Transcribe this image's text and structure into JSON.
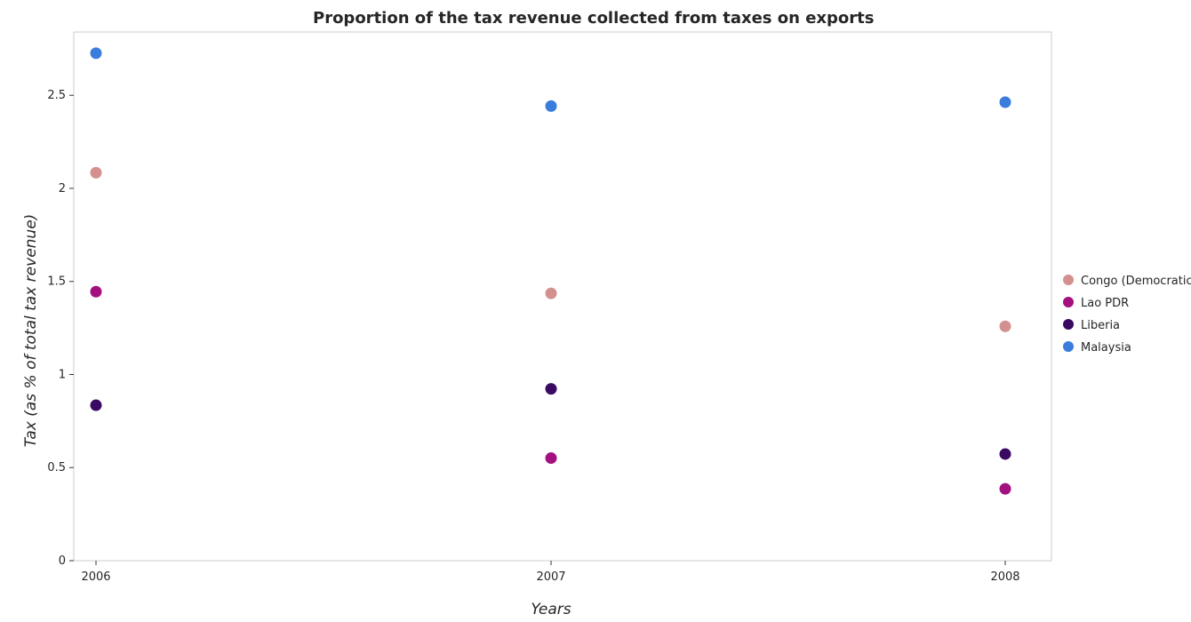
{
  "chart_data": {
    "type": "scatter",
    "title": "Proportion of the tax revenue collected from taxes on exports",
    "xlabel": "Years",
    "ylabel": "Tax (as % of total tax revenue)",
    "x": [
      "2006",
      "2007",
      "2008"
    ],
    "ylim": [
      0,
      2.84
    ],
    "yticks": [
      0,
      0.5,
      1,
      1.5,
      2,
      2.5
    ],
    "ytick_labels": [
      "0",
      "0.5",
      "1",
      "1.5",
      "2",
      "2.5"
    ],
    "grid": false,
    "legend_position": "right",
    "series": [
      {
        "name": "Congo (Democratic)",
        "color": "#d4908f",
        "values": [
          2.084,
          1.436,
          1.259
        ]
      },
      {
        "name": "Lao PDR",
        "color": "#a2117f",
        "values": [
          1.445,
          0.551,
          0.386
        ]
      },
      {
        "name": "Liberia",
        "color": "#3a0a63",
        "values": [
          0.835,
          0.923,
          0.573
        ]
      },
      {
        "name": "Malaysia",
        "color": "#3b7ddd",
        "values": [
          2.726,
          2.442,
          2.463
        ]
      }
    ]
  }
}
